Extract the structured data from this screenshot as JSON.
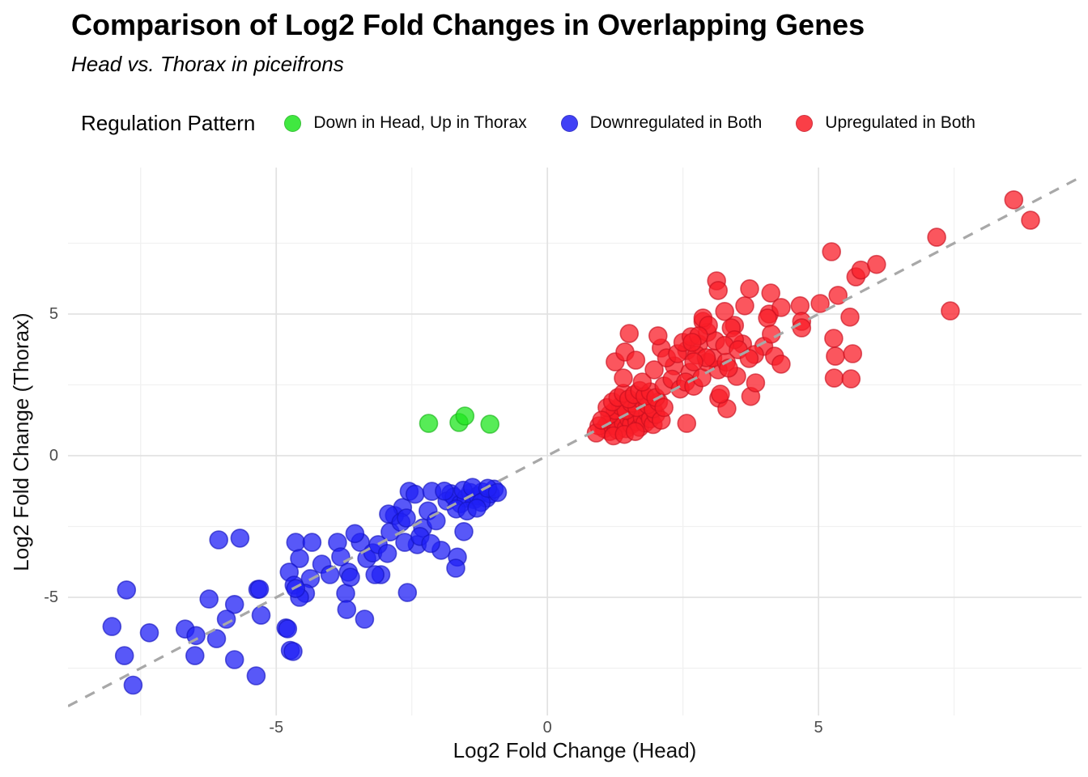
{
  "chart_data": {
    "type": "scatter",
    "title": "Comparison of Log2 Fold Changes in Overlapping Genes",
    "subtitle": "Head vs. Thorax in piceifrons",
    "legend_title": "Regulation Pattern",
    "legend_position": "top",
    "xlabel": "Log2 Fold Change (Head)",
    "ylabel": "Log2 Fold Change (Thorax)",
    "x_range": [
      -8.84,
      9.85
    ],
    "y_range": [
      -9.17,
      10.17
    ],
    "x_ticks": [
      -5,
      0,
      5
    ],
    "y_ticks": [
      5,
      0,
      -5
    ],
    "grid": {
      "on": true,
      "minor_x": [
        -7.5,
        -2.5,
        2.5,
        7.5
      ],
      "minor_y": [
        -7.5,
        -2.5,
        2.5,
        7.5
      ],
      "major_color": "#e2e2e2",
      "minor_color": "#f1f1f1"
    },
    "identity_line": {
      "style": "dashed",
      "color": "#a8a8a8",
      "from": [
        -8.84,
        -8.84
      ],
      "to": [
        9.85,
        9.85
      ]
    },
    "point_radius_px": 11,
    "series": [
      {
        "name": "Down in Head, Up in Thorax",
        "color": "#1fe51f",
        "edge": "#17b517",
        "points": [
          [
            -2.19,
            1.14
          ],
          [
            -1.63,
            1.17
          ],
          [
            -1.52,
            1.4
          ],
          [
            -1.06,
            1.11
          ]
        ]
      },
      {
        "name": "Downregulated in Both",
        "color": "#2020f5",
        "edge": "#1414c0",
        "points": [
          [
            -8.03,
            -6.03
          ],
          [
            -7.8,
            -7.06
          ],
          [
            -7.76,
            -4.74
          ],
          [
            -7.64,
            -8.1
          ],
          [
            -7.34,
            -6.25
          ],
          [
            -6.68,
            -6.12
          ],
          [
            -6.48,
            -6.35
          ],
          [
            -6.24,
            -5.06
          ],
          [
            -6.1,
            -6.46
          ],
          [
            -6.5,
            -7.06
          ],
          [
            -5.77,
            -5.25
          ],
          [
            -5.92,
            -5.77
          ],
          [
            -5.77,
            -7.2
          ],
          [
            -5.34,
            -4.72
          ],
          [
            -5.28,
            -5.63
          ],
          [
            -5.37,
            -7.77
          ],
          [
            -6.06,
            -2.97
          ],
          [
            -5.67,
            -2.91
          ],
          [
            -5.31,
            -4.71
          ],
          [
            -4.82,
            -6.08
          ],
          [
            -4.74,
            -6.87
          ],
          [
            -4.64,
            -3.06
          ],
          [
            -4.34,
            -3.06
          ],
          [
            -4.57,
            -3.63
          ],
          [
            -4.76,
            -4.11
          ],
          [
            -4.37,
            -4.34
          ],
          [
            -4.16,
            -3.83
          ],
          [
            -4.67,
            -4.57
          ],
          [
            -4.46,
            -4.86
          ],
          [
            -3.87,
            -3.06
          ],
          [
            -3.81,
            -3.57
          ],
          [
            -3.67,
            -4.11
          ],
          [
            -3.45,
            -3.06
          ],
          [
            -3.33,
            -3.63
          ],
          [
            -3.22,
            -3.43
          ],
          [
            -3.12,
            -3.14
          ],
          [
            -4.79,
            -6.11
          ],
          [
            -4.69,
            -6.91
          ],
          [
            -4.57,
            -5.0
          ],
          [
            -3.72,
            -4.86
          ],
          [
            -3.7,
            -5.43
          ],
          [
            -3.37,
            -5.77
          ],
          [
            -2.58,
            -4.83
          ],
          [
            -3.07,
            -4.2
          ],
          [
            -3.63,
            -4.29
          ],
          [
            -4.01,
            -4.2
          ],
          [
            -4.64,
            -4.69
          ],
          [
            -2.9,
            -2.69
          ],
          [
            -2.82,
            -2.11
          ],
          [
            -2.67,
            -1.83
          ],
          [
            -2.55,
            -1.26
          ],
          [
            -2.93,
            -2.06
          ],
          [
            -3.18,
            -4.2
          ],
          [
            -2.4,
            -3.14
          ],
          [
            -2.63,
            -3.06
          ],
          [
            -2.44,
            -1.36
          ],
          [
            -2.13,
            -1.26
          ],
          [
            -1.96,
            -3.34
          ],
          [
            -1.66,
            -3.58
          ],
          [
            -1.54,
            -2.68
          ],
          [
            -1.78,
            -1.34
          ],
          [
            -1.69,
            -3.97
          ],
          [
            -1.85,
            -1.6
          ],
          [
            -1.72,
            -1.45
          ],
          [
            -1.6,
            -1.7
          ],
          [
            -1.5,
            -1.5
          ],
          [
            -1.42,
            -1.3
          ],
          [
            -1.35,
            -1.55
          ],
          [
            -1.28,
            -1.42
          ],
          [
            -1.2,
            -1.28
          ],
          [
            -1.12,
            -1.5
          ],
          [
            -1.05,
            -1.35
          ],
          [
            -0.98,
            -1.18
          ],
          [
            -1.55,
            -1.22
          ],
          [
            -1.38,
            -1.12
          ],
          [
            -1.22,
            -1.65
          ],
          [
            -1.68,
            -1.88
          ],
          [
            -1.48,
            -1.95
          ],
          [
            -1.3,
            -1.85
          ],
          [
            -1.1,
            -1.15
          ],
          [
            -0.92,
            -1.3
          ],
          [
            -1.9,
            -1.25
          ],
          [
            -2.7,
            -2.35
          ],
          [
            -2.95,
            -3.45
          ],
          [
            -2.3,
            -2.55
          ],
          [
            -2.2,
            -1.95
          ],
          [
            -2.05,
            -2.3
          ],
          [
            -3.55,
            -2.75
          ],
          [
            -2.35,
            -2.85
          ],
          [
            -2.6,
            -2.2
          ],
          [
            -2.15,
            -3.1
          ]
        ]
      },
      {
        "name": "Upregulated in Both",
        "color": "#fa1e28",
        "edge": "#c80f1e",
        "points": [
          [
            1.05,
            0.95
          ],
          [
            1.1,
            1.1
          ],
          [
            1.15,
            0.85
          ],
          [
            1.2,
            1.25
          ],
          [
            1.25,
            1.05
          ],
          [
            1.3,
            0.9
          ],
          [
            1.35,
            1.4
          ],
          [
            1.4,
            1.15
          ],
          [
            1.45,
            0.95
          ],
          [
            1.5,
            1.3
          ],
          [
            1.55,
            1.1
          ],
          [
            1.6,
            1.45
          ],
          [
            1.65,
            1.2
          ],
          [
            1.7,
            1.0
          ],
          [
            1.75,
            1.35
          ],
          [
            1.8,
            1.15
          ],
          [
            1.85,
            1.5
          ],
          [
            1.9,
            1.3
          ],
          [
            1.95,
            1.1
          ],
          [
            2.0,
            1.45
          ],
          [
            1.15,
            1.45
          ],
          [
            1.25,
            1.6
          ],
          [
            1.35,
            1.75
          ],
          [
            1.45,
            1.6
          ],
          [
            1.55,
            1.85
          ],
          [
            1.65,
            1.7
          ],
          [
            1.75,
            1.95
          ],
          [
            1.85,
            1.8
          ],
          [
            1.95,
            1.65
          ],
          [
            2.05,
            1.9
          ],
          [
            1.1,
            1.7
          ],
          [
            1.2,
            1.9
          ],
          [
            1.3,
            2.05
          ],
          [
            1.4,
            2.2
          ],
          [
            1.5,
            2.0
          ],
          [
            1.6,
            2.15
          ],
          [
            1.7,
            2.3
          ],
          [
            1.8,
            2.1
          ],
          [
            1.9,
            2.25
          ],
          [
            2.0,
            2.05
          ],
          [
            0.95,
            1.05
          ],
          [
            0.9,
            0.8
          ],
          [
            1.0,
            1.25
          ],
          [
            2.1,
            1.25
          ],
          [
            2.15,
            1.7
          ],
          [
            1.22,
            0.7
          ],
          [
            1.42,
            0.75
          ],
          [
            1.62,
            0.85
          ],
          [
            2.57,
            1.14
          ],
          [
            3.16,
            2.03
          ],
          [
            3.31,
            1.66
          ],
          [
            1.25,
            3.31
          ],
          [
            1.4,
            2.74
          ],
          [
            1.43,
            3.66
          ],
          [
            1.63,
            3.37
          ],
          [
            1.75,
            2.6
          ],
          [
            1.97,
            3.03
          ],
          [
            2.15,
            2.46
          ],
          [
            2.34,
            3.17
          ],
          [
            2.63,
            2.94
          ],
          [
            2.1,
            3.8
          ],
          [
            2.04,
            4.23
          ],
          [
            1.51,
            4.31
          ],
          [
            2.57,
            3.71
          ],
          [
            2.79,
            3.94
          ],
          [
            2.87,
            4.74
          ],
          [
            3.15,
            3.03
          ],
          [
            3.19,
            2.17
          ],
          [
            3.49,
            2.8
          ],
          [
            3.6,
            3.94
          ],
          [
            3.75,
            2.09
          ],
          [
            3.84,
            2.57
          ],
          [
            3.99,
            3.86
          ],
          [
            3.45,
            4.6
          ],
          [
            2.3,
            2.7
          ],
          [
            2.45,
            2.35
          ],
          [
            2.55,
            2.6
          ],
          [
            2.7,
            2.45
          ],
          [
            2.85,
            2.75
          ],
          [
            2.95,
            3.3
          ],
          [
            2.2,
            3.45
          ],
          [
            2.4,
            3.6
          ],
          [
            2.75,
            3.55
          ],
          [
            3.05,
            3.45
          ],
          [
            3.3,
            3.3
          ],
          [
            2.5,
            4.0
          ],
          [
            2.65,
            4.2
          ],
          [
            2.95,
            4.35
          ],
          [
            3.1,
            4.05
          ],
          [
            3.12,
            6.17
          ],
          [
            4.12,
            5.74
          ],
          [
            5.36,
            5.66
          ],
          [
            5.03,
            5.37
          ],
          [
            5.69,
            6.31
          ],
          [
            3.64,
            5.29
          ],
          [
            4.66,
            5.29
          ],
          [
            3.27,
            5.09
          ],
          [
            4.09,
            5.0
          ],
          [
            2.87,
            4.86
          ],
          [
            4.31,
            5.23
          ],
          [
            4.06,
            4.86
          ],
          [
            5.58,
            4.89
          ],
          [
            2.97,
            4.6
          ],
          [
            3.39,
            4.51
          ],
          [
            4.69,
            4.74
          ],
          [
            4.69,
            4.51
          ],
          [
            3.45,
            4.09
          ],
          [
            3.27,
            3.89
          ],
          [
            2.79,
            4.23
          ],
          [
            2.67,
            4.0
          ],
          [
            3.52,
            3.74
          ],
          [
            3.82,
            3.57
          ],
          [
            2.93,
            3.46
          ],
          [
            2.7,
            3.31
          ],
          [
            3.34,
            3.09
          ],
          [
            3.72,
            3.43
          ],
          [
            4.19,
            3.51
          ],
          [
            4.31,
            3.23
          ],
          [
            5.28,
            4.14
          ],
          [
            5.31,
            3.51
          ],
          [
            5.63,
            3.6
          ],
          [
            4.13,
            4.29
          ],
          [
            3.73,
            5.89
          ],
          [
            3.15,
            5.83
          ],
          [
            5.24,
            7.2
          ],
          [
            7.18,
            7.71
          ],
          [
            5.78,
            6.55
          ],
          [
            6.07,
            6.75
          ],
          [
            7.43,
            5.11
          ],
          [
            8.6,
            9.03
          ],
          [
            8.91,
            8.31
          ],
          [
            5.29,
            2.74
          ],
          [
            5.6,
            2.71
          ]
        ]
      }
    ]
  }
}
